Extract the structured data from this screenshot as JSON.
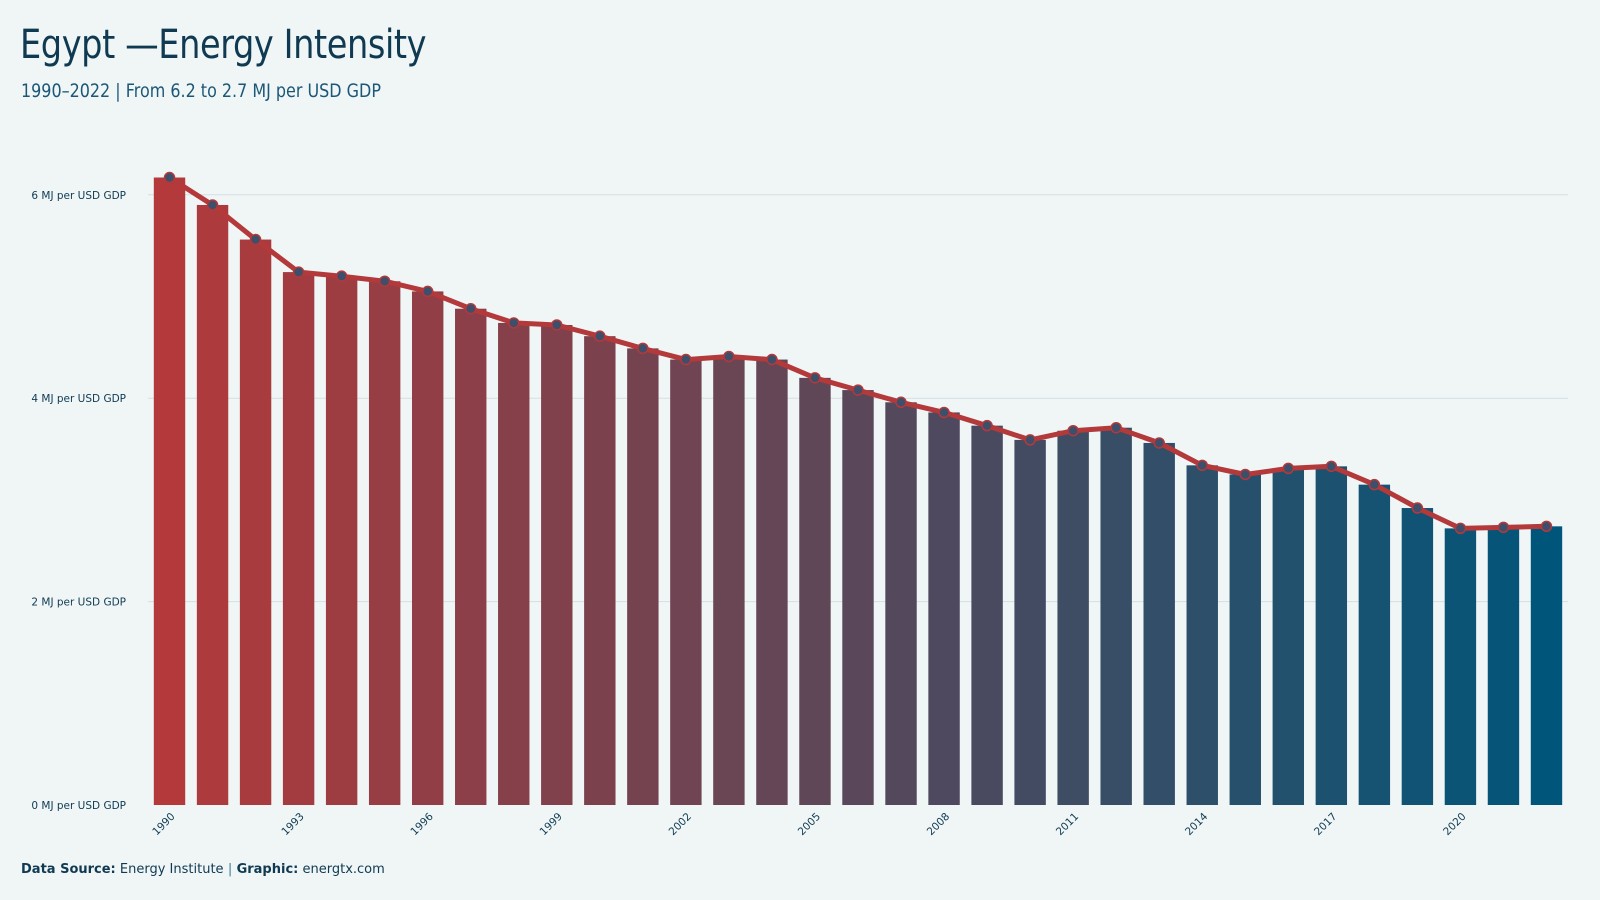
{
  "header": {
    "title": "Egypt —Energy Intensity",
    "subtitle": "1990–2022 | From 6.2 to 2.7 MJ per USD GDP"
  },
  "footer": {
    "source_label": "Data Source:",
    "source_value": "Energy Institute",
    "separator": "|",
    "graphic_label": "Graphic:",
    "graphic_value": "energtx.com"
  },
  "colors": {
    "background": "#f0f6f6",
    "bar_start": "#b3393a",
    "bar_end": "#00567a",
    "line": "#b3393a",
    "marker_fill": "#3e4f6b",
    "grid": "#d4dfe3",
    "text": "#0f3a52"
  },
  "chart_data": {
    "type": "bar",
    "overlay": "line-with-markers",
    "x": [
      1990,
      1991,
      1992,
      1993,
      1994,
      1995,
      1996,
      1997,
      1998,
      1999,
      2000,
      2001,
      2002,
      2003,
      2004,
      2005,
      2006,
      2007,
      2008,
      2009,
      2010,
      2011,
      2012,
      2013,
      2014,
      2015,
      2016,
      2017,
      2018,
      2019,
      2020,
      2021,
      2022
    ],
    "values": [
      6.17,
      5.9,
      5.56,
      5.24,
      5.2,
      5.15,
      5.05,
      4.88,
      4.74,
      4.72,
      4.61,
      4.49,
      4.38,
      4.41,
      4.38,
      4.2,
      4.08,
      3.96,
      3.86,
      3.73,
      3.59,
      3.68,
      3.71,
      3.56,
      3.34,
      3.25,
      3.31,
      3.33,
      3.15,
      2.92,
      2.72,
      2.73,
      2.74
    ],
    "x_tick_labels": [
      "1990",
      "1993",
      "1996",
      "1999",
      "2002",
      "2005",
      "2008",
      "2011",
      "2014",
      "2017",
      "2020"
    ],
    "y_ticks": [
      0,
      2,
      4,
      6
    ],
    "y_tick_labels": [
      "0 MJ per USD GDP",
      "2 MJ per USD GDP",
      "4 MJ per USD GDP",
      "6 MJ per USD GDP"
    ],
    "ylim": [
      0,
      6.5
    ],
    "xlabel": "",
    "ylabel": "",
    "grid": true,
    "legend": "none"
  }
}
